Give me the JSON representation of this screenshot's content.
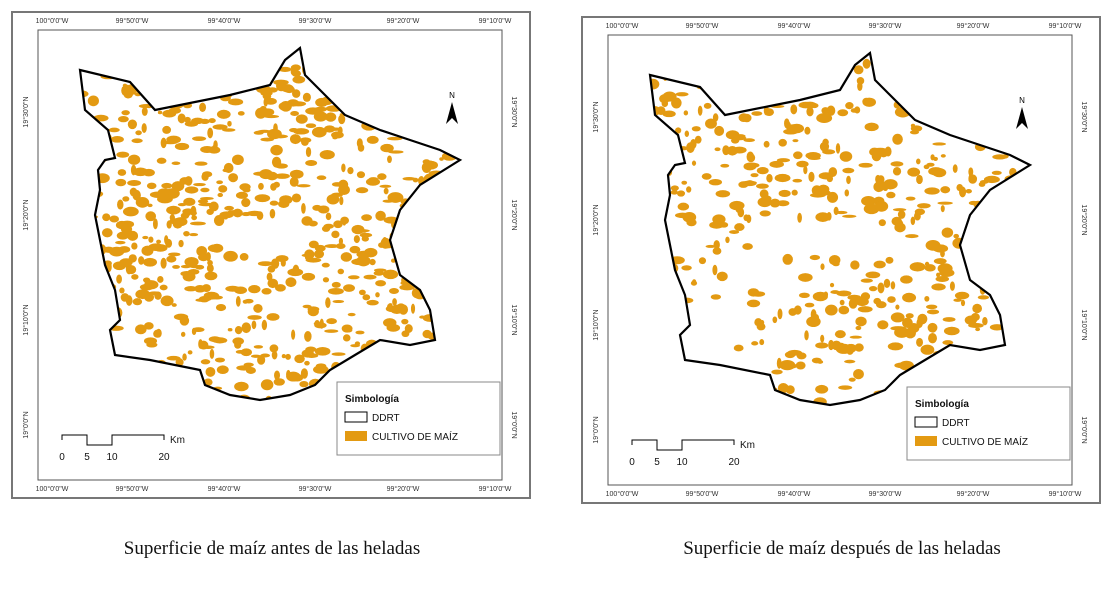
{
  "maps": [
    {
      "caption": "Superficie de maíz antes de las heladas",
      "lon_labels": [
        "100°0'0\"W",
        "99°50'0\"W",
        "99°40'0\"W",
        "99°30'0\"W",
        "99°20'0\"W",
        "99°10'0\"W"
      ],
      "lat_labels": [
        "19°30'0\"N",
        "19°20'0\"N",
        "19°10'0\"N",
        "19°0'0\"N"
      ],
      "north": "N",
      "legend": {
        "title": "Simbología",
        "items": [
          "DDRT",
          "CULTIVO DE MAÍZ"
        ]
      },
      "scale": {
        "labels": [
          "0",
          "5",
          "10",
          "20"
        ],
        "unit": "Km"
      }
    },
    {
      "caption": "Superficie de maíz después de las heladas",
      "lon_labels": [
        "100°0'0\"W",
        "99°50'0\"W",
        "99°40'0\"W",
        "99°30'0\"W",
        "99°20'0\"W",
        "99°10'0\"W"
      ],
      "lat_labels": [
        "19°30'0\"N",
        "19°20'0\"N",
        "19°10'0\"N",
        "19°0'0\"N"
      ],
      "north": "N",
      "legend": {
        "title": "Simbología",
        "items": [
          "DDRT",
          "CULTIVO DE MAÍZ"
        ]
      },
      "scale": {
        "labels": [
          "0",
          "5",
          "10",
          "20"
        ],
        "unit": "Km"
      }
    }
  ]
}
